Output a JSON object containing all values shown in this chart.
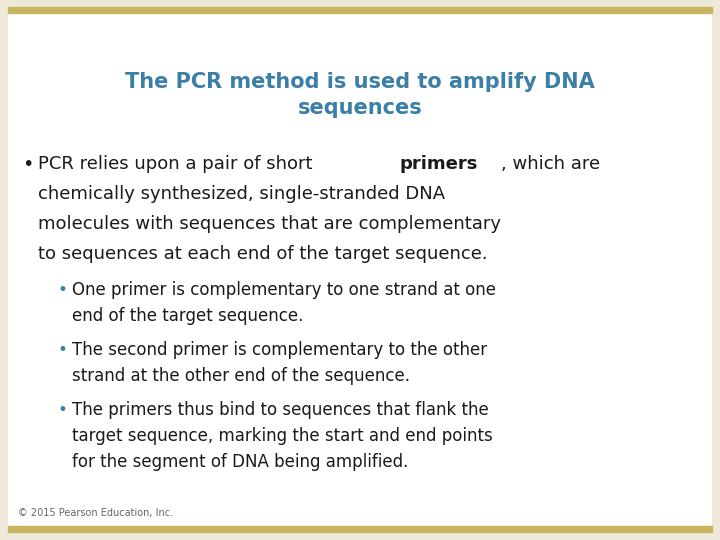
{
  "title": "The PCR method is used to amplify DNA\nsequences",
  "title_color": "#3a7fa8",
  "bg_outer": "#ede8d8",
  "bg_slide": "#ffffff",
  "border_color": "#c8b560",
  "text_color": "#1a1a1a",
  "bullet_color": "#3a7fa8",
  "footer": "© 2015 Pearson Education, Inc.",
  "main_before": "PCR relies upon a pair of short ",
  "main_bold": "primers",
  "main_after": ", which are",
  "main_lines": [
    "chemically synthesized, single-stranded DNA",
    "molecules with sequences that are complementary",
    "to sequences at each end of the target sequence."
  ],
  "sub_bullets": [
    [
      "One primer is complementary to one strand at one",
      "end of the target sequence."
    ],
    [
      "The second primer is complementary to the other",
      "strand at the other end of the sequence."
    ],
    [
      "The primers thus bind to sequences that flank the",
      "target sequence, marking the start and end points",
      "for the segment of DNA being amplified."
    ]
  ],
  "title_fs": 15,
  "main_fs": 13,
  "sub_fs": 12,
  "footer_fs": 7
}
